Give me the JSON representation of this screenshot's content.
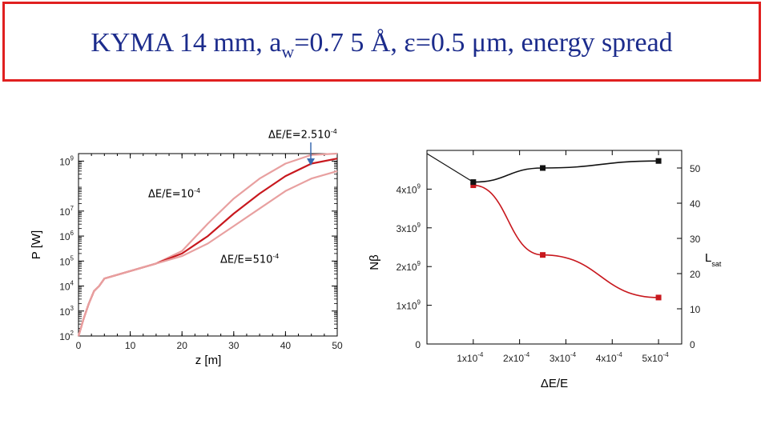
{
  "slide": {
    "title_main": "KYMA 14 mm, a",
    "title_sub": "w",
    "title_rest": "=0.7 5 Å, ε=0.5 μm, energy spread"
  },
  "annotations": {
    "a1_base": "ΔE/E=2.510",
    "a1_exp": "-4",
    "a2_base": "ΔE/E=10",
    "a2_exp": "-4",
    "a3_base": "ΔE/E=510",
    "a3_exp": "-4"
  },
  "chart_data": [
    {
      "type": "line",
      "xlabel": "z [m]",
      "ylabel": "P [W]",
      "xlim": [
        0,
        50
      ],
      "ylim_log10": [
        2,
        9.3
      ],
      "x_ticks": [
        "0",
        "10",
        "20",
        "30",
        "40",
        "50"
      ],
      "y_ticks": [
        {
          "base": "10",
          "exp": "2",
          "v": 2
        },
        {
          "base": "10",
          "exp": "3",
          "v": 3
        },
        {
          "base": "10",
          "exp": "4",
          "v": 4
        },
        {
          "base": "10",
          "exp": "5",
          "v": 5
        },
        {
          "base": "10",
          "exp": "6",
          "v": 6
        },
        {
          "base": "10",
          "exp": "7",
          "v": 7
        },
        {
          "base": "10",
          "exp": "9",
          "v": 9
        }
      ],
      "series": [
        {
          "name": "ΔE/E=1e-4",
          "color": "#e8a0a0",
          "x": [
            0,
            1,
            2,
            3,
            4,
            5,
            10,
            15,
            20,
            25,
            30,
            35,
            40,
            45,
            50
          ],
          "log10P": [
            2.0,
            2.7,
            3.3,
            3.8,
            4.0,
            4.3,
            4.6,
            4.9,
            5.4,
            6.5,
            7.5,
            8.3,
            8.9,
            9.25,
            9.3
          ]
        },
        {
          "name": "ΔE/E=2.5e-4",
          "color": "#c8181e",
          "x": [
            0,
            1,
            2,
            3,
            4,
            5,
            10,
            15,
            20,
            25,
            30,
            35,
            40,
            45,
            50
          ],
          "log10P": [
            2.0,
            2.7,
            3.3,
            3.8,
            4.0,
            4.3,
            4.6,
            4.9,
            5.3,
            6.0,
            6.9,
            7.7,
            8.4,
            8.9,
            9.1
          ]
        },
        {
          "name": "ΔE/E=5e-4",
          "color": "#e8a0a0",
          "x": [
            0,
            1,
            2,
            3,
            4,
            5,
            10,
            15,
            20,
            25,
            30,
            35,
            40,
            45,
            50
          ],
          "log10P": [
            2.0,
            2.7,
            3.3,
            3.8,
            4.0,
            4.3,
            4.6,
            4.9,
            5.2,
            5.7,
            6.4,
            7.1,
            7.8,
            8.3,
            8.6
          ]
        }
      ]
    },
    {
      "type": "scatter-line",
      "xlabel": "ΔE/E",
      "ylabel": "Nβ",
      "y2label": "L",
      "y2label_sub": "sat",
      "xlim": [
        0.0,
        0.00055
      ],
      "ylim": [
        0,
        5000000000
      ],
      "y2lim": [
        0,
        55
      ],
      "x_ticks": [
        {
          "v": 0.0001,
          "mant": "1x10",
          "exp": "-4"
        },
        {
          "v": 0.0002,
          "mant": "2x10",
          "exp": "-4"
        },
        {
          "v": 0.0003,
          "mant": "3x10",
          "exp": "-4"
        },
        {
          "v": 0.0004,
          "mant": "4x10",
          "exp": "-4"
        },
        {
          "v": 0.0005,
          "mant": "5x10",
          "exp": "-4"
        }
      ],
      "y_ticks": [
        {
          "v": 0,
          "mant": "0",
          "exp": ""
        },
        {
          "v": 1000000000,
          "mant": "1x10",
          "exp": "9"
        },
        {
          "v": 2000000000,
          "mant": "2x10",
          "exp": "9"
        },
        {
          "v": 3000000000,
          "mant": "3x10",
          "exp": "9"
        },
        {
          "v": 4000000000,
          "mant": "4x10",
          "exp": "9"
        }
      ],
      "y2_ticks": [
        "0",
        "10",
        "20",
        "30",
        "40",
        "50"
      ],
      "series": [
        {
          "name": "Nβ",
          "axis": "left",
          "color": "#c8181e",
          "x": [
            0.0001,
            0.00025,
            0.0005
          ],
          "y": [
            4100000000,
            2300000000,
            1200000000
          ]
        },
        {
          "name": "Lsat",
          "axis": "right",
          "color": "#111111",
          "x": [
            0.0001,
            0.00025,
            0.0005
          ],
          "y": [
            46,
            50,
            52
          ]
        }
      ]
    }
  ]
}
